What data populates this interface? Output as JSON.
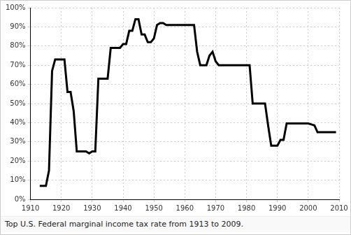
{
  "chart_data": {
    "type": "line",
    "caption": "Top U.S. Federal marginal income tax rate from 1913 to 2009.",
    "x": [
      1913,
      1914,
      1915,
      1916,
      1917,
      1918,
      1919,
      1920,
      1921,
      1922,
      1923,
      1924,
      1925,
      1926,
      1927,
      1928,
      1929,
      1930,
      1931,
      1932,
      1933,
      1934,
      1935,
      1936,
      1937,
      1938,
      1939,
      1940,
      1941,
      1942,
      1943,
      1944,
      1945,
      1946,
      1947,
      1948,
      1949,
      1950,
      1951,
      1952,
      1953,
      1954,
      1955,
      1956,
      1957,
      1958,
      1959,
      1960,
      1961,
      1962,
      1963,
      1964,
      1965,
      1966,
      1967,
      1968,
      1969,
      1970,
      1971,
      1972,
      1973,
      1974,
      1975,
      1976,
      1977,
      1978,
      1979,
      1980,
      1981,
      1982,
      1983,
      1984,
      1985,
      1986,
      1987,
      1988,
      1989,
      1990,
      1991,
      1992,
      1993,
      1994,
      1995,
      1996,
      1997,
      1998,
      1999,
      2000,
      2001,
      2002,
      2003,
      2004,
      2005,
      2006,
      2007,
      2008,
      2009
    ],
    "values": [
      7,
      7,
      7,
      15,
      67,
      73,
      73,
      73,
      73,
      56,
      56,
      46,
      25,
      25,
      25,
      25,
      24,
      25,
      25,
      63,
      63,
      63,
      63,
      79,
      79,
      79,
      79,
      81,
      81,
      88,
      88,
      94,
      94,
      86,
      86,
      82,
      82,
      84,
      91,
      92,
      92,
      91,
      91,
      91,
      91,
      91,
      91,
      91,
      91,
      91,
      91,
      77,
      70,
      70,
      70,
      75,
      77,
      72,
      70,
      70,
      70,
      70,
      70,
      70,
      70,
      70,
      70,
      70,
      70,
      50,
      50,
      50,
      50,
      50,
      38.5,
      28,
      28,
      28,
      31,
      31,
      39.6,
      39.6,
      39.6,
      39.6,
      39.6,
      39.6,
      39.6,
      39.6,
      39.1,
      38.6,
      35,
      35,
      35,
      35,
      35,
      35,
      35
    ],
    "color": "#000000",
    "xlim": [
      1910,
      2010
    ],
    "xticks": [
      1910,
      1920,
      1930,
      1940,
      1950,
      1960,
      1970,
      1980,
      1990,
      2000,
      2010
    ],
    "ylim": [
      0,
      100
    ],
    "yticks": [
      {
        "value": 0,
        "label": "0%"
      },
      {
        "value": 10,
        "label": "10%"
      },
      {
        "value": 20,
        "label": "20%"
      },
      {
        "value": 30,
        "label": "30%"
      },
      {
        "value": 40,
        "label": "40%"
      },
      {
        "value": 50,
        "label": "50%"
      },
      {
        "value": 60,
        "label": "60%"
      },
      {
        "value": 70,
        "label": "70%"
      },
      {
        "value": 80,
        "label": "80%"
      },
      {
        "value": 90,
        "label": "90%"
      },
      {
        "value": 100,
        "label": "100%"
      }
    ],
    "grid": true
  }
}
